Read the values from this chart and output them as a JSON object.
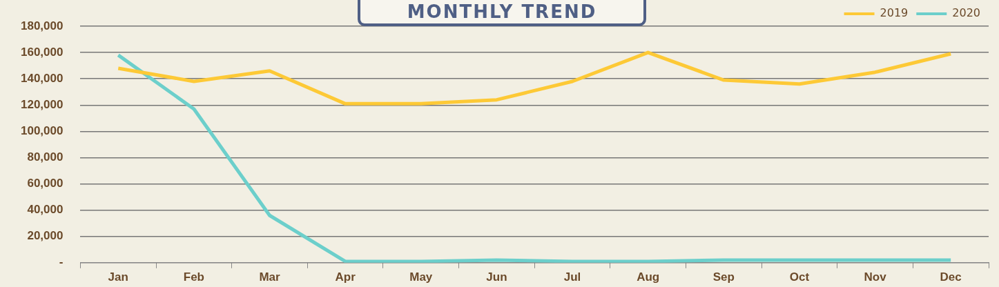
{
  "chart_data": {
    "type": "line",
    "title": "MONTHLY TREND",
    "categories": [
      "Jan",
      "Feb",
      "Mar",
      "Apr",
      "May",
      "Jun",
      "Jul",
      "Aug",
      "Sep",
      "Oct",
      "Nov",
      "Dec"
    ],
    "series": [
      {
        "name": "2019",
        "color": "#fdc936",
        "values": [
          148000,
          138000,
          146000,
          121000,
          121000,
          124000,
          138000,
          160000,
          139000,
          136000,
          145000,
          159000
        ]
      },
      {
        "name": "2020",
        "color": "#6ccfcb",
        "values": [
          158000,
          117000,
          36000,
          1000,
          1000,
          2000,
          1000,
          1000,
          2000,
          2000,
          2000,
          2000
        ]
      }
    ],
    "ylim": [
      0,
      180000
    ],
    "yticks": [
      {
        "value": 0,
        "label": "-"
      },
      {
        "value": 20000,
        "label": "20,000"
      },
      {
        "value": 40000,
        "label": "40,000"
      },
      {
        "value": 60000,
        "label": "60,000"
      },
      {
        "value": 80000,
        "label": "80,000"
      },
      {
        "value": 100000,
        "label": "100,000"
      },
      {
        "value": 120000,
        "label": "120,000"
      },
      {
        "value": 140000,
        "label": "140,000"
      },
      {
        "value": 160000,
        "label": "160,000"
      },
      {
        "value": 180000,
        "label": "180,000"
      }
    ],
    "grid": "y",
    "legend": "top right",
    "marker": "none",
    "line_style": "solid"
  }
}
